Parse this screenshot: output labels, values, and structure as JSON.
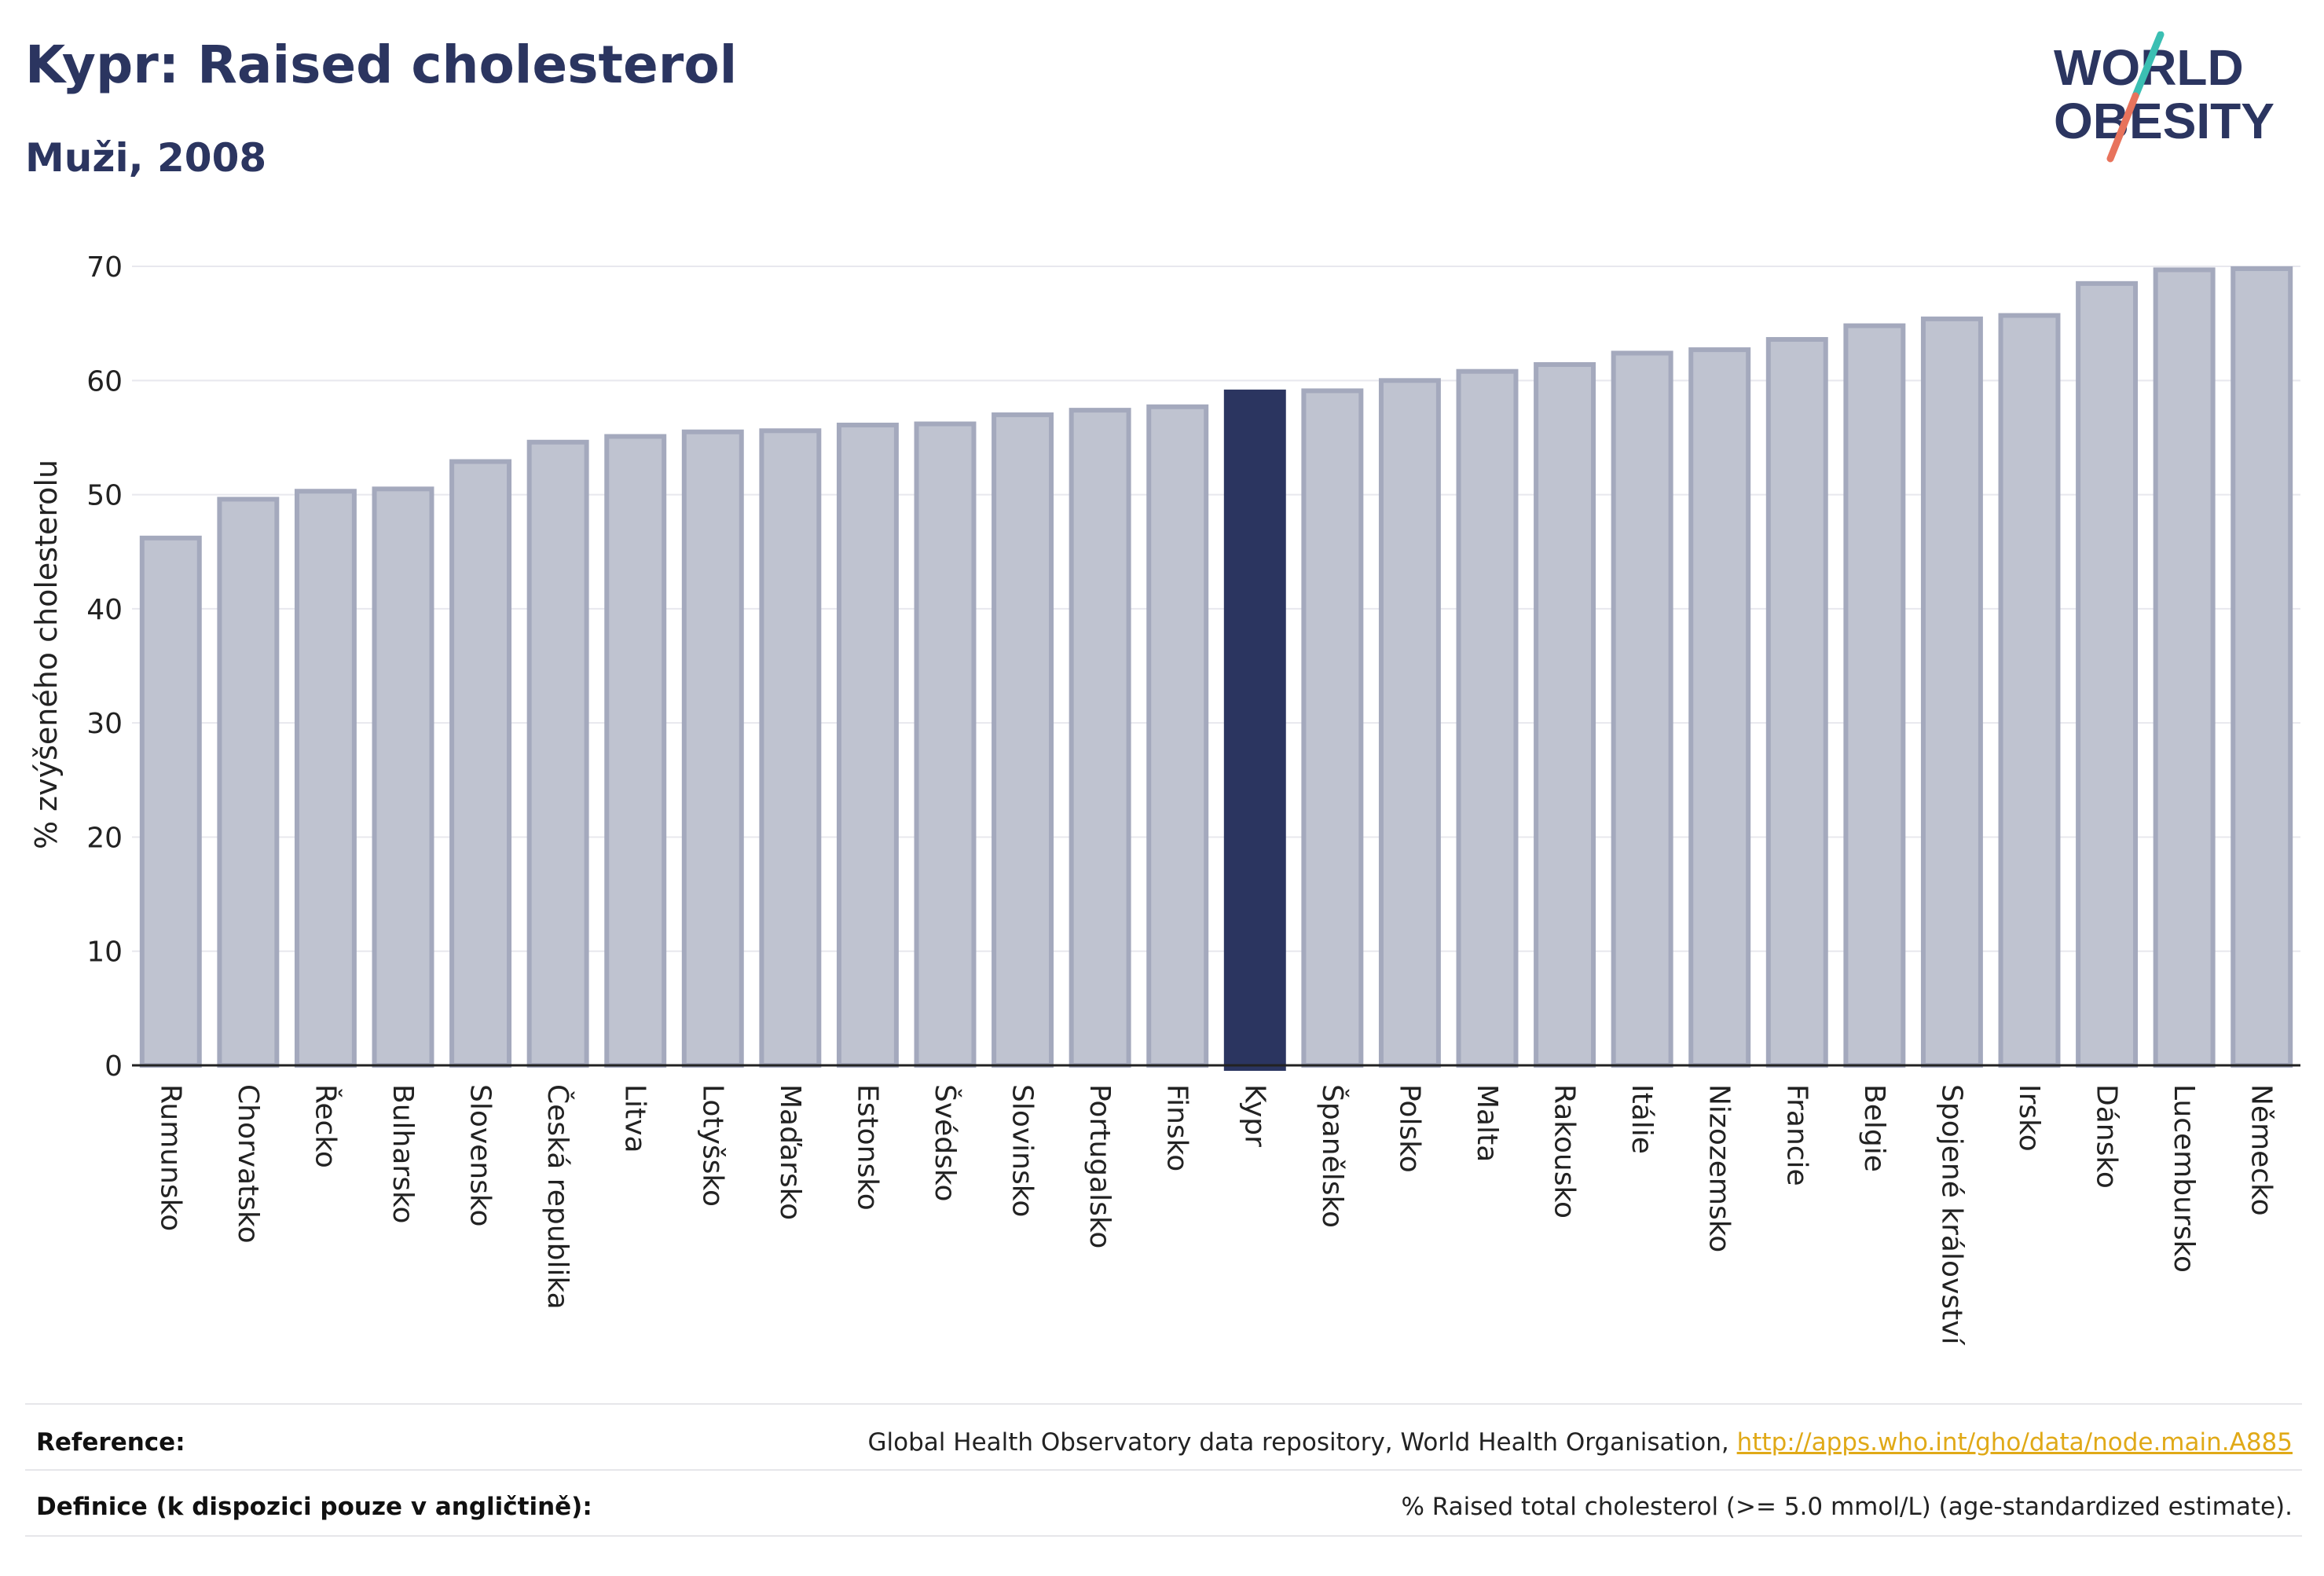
{
  "header": {
    "title": "Kypr: Raised cholesterol",
    "subtitle": "Muži, 2008"
  },
  "logo": {
    "line1": "WORLD",
    "line2": "OBESITY",
    "slash_colors": [
      "#3bbfb3",
      "#e8735c"
    ],
    "text_color": "#2b3560"
  },
  "chart_data": {
    "type": "bar",
    "title": "Kypr: Raised cholesterol",
    "subtitle": "Muži, 2008",
    "ylabel": "% zvýšeného cholesterolu",
    "xlabel": "",
    "ylim": [
      0,
      72
    ],
    "yticks": [
      0,
      10,
      20,
      30,
      40,
      50,
      60,
      70
    ],
    "grid": true,
    "highlight": "Kypr",
    "colors": {
      "bar": "#bfc3d0",
      "bar_border": "#a4a9bd",
      "highlight": "#2b3560"
    },
    "categories": [
      "Rumunsko",
      "Chorvatsko",
      "Řecko",
      "Bulharsko",
      "Slovensko",
      "Česká republika",
      "Litva",
      "Lotyšsko",
      "Maďarsko",
      "Estonsko",
      "Švédsko",
      "Slovinsko",
      "Portugalsko",
      "Finsko",
      "Kypr",
      "Španělsko",
      "Polsko",
      "Malta",
      "Rakousko",
      "Itálie",
      "Nizozemsko",
      "Francie",
      "Belgie",
      "Spojené království",
      "Irsko",
      "Dánsko",
      "Lucembursko",
      "Německo"
    ],
    "values": [
      46.2,
      49.6,
      50.3,
      50.5,
      52.9,
      54.6,
      55.1,
      55.5,
      55.6,
      56.1,
      56.2,
      57.0,
      57.4,
      57.7,
      59.0,
      59.1,
      60.0,
      60.8,
      61.4,
      62.4,
      62.7,
      63.6,
      64.8,
      65.4,
      65.7,
      68.5,
      69.7,
      69.8
    ]
  },
  "footer": {
    "reference_label": "Reference:",
    "reference_text": "Global Health Observatory data repository, World Health Organisation,",
    "reference_link": "http://apps.who.int/gho/data/node.main.A885",
    "definition_label": "Definice (k dispozici pouze v angličtině):",
    "definition_text": "% Raised total cholesterol (>= 5.0 mmol/L) (age-standardized estimate)."
  }
}
